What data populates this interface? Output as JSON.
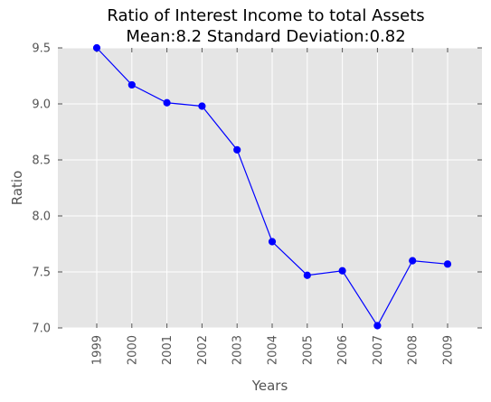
{
  "chart_data": {
    "type": "line",
    "title": "Ratio of Interest Income to total Assets",
    "subtitle": "Mean:8.2 Standard Deviation:0.82",
    "xlabel": "Years",
    "ylabel": "Ratio",
    "categories": [
      "1999",
      "2000",
      "2001",
      "2002",
      "2003",
      "2004",
      "2005",
      "2006",
      "2007",
      "2008",
      "2009"
    ],
    "series": [
      {
        "values": [
          9.5,
          9.17,
          9.01,
          8.98,
          8.59,
          7.77,
          7.47,
          7.51,
          7.02,
          7.6,
          7.57
        ],
        "color": "#0000ff"
      }
    ],
    "yticks": [
      "7.0",
      "7.5",
      "8.0",
      "8.5",
      "9.0",
      "9.5"
    ],
    "ylim": [
      7.0,
      9.5
    ],
    "grid": true,
    "background": "#e5e5e5",
    "gridColor": "#ffffff"
  }
}
